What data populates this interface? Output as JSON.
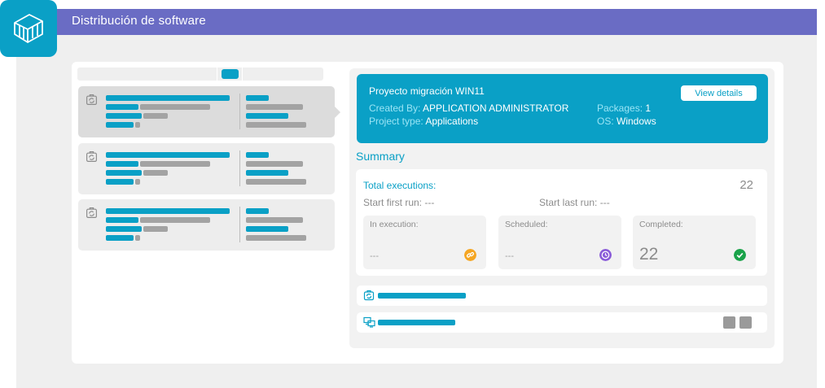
{
  "app": {
    "title": "Distribución de software"
  },
  "project": {
    "title": "Proyecto migración WIN11",
    "created_by_label": "Created By:",
    "created_by": "APPLICATION ADMINISTRATOR",
    "project_type_label": "Project type:",
    "project_type": "Applications",
    "packages_label": "Packages:",
    "packages": "1",
    "os_label": "OS:",
    "os": "Windows",
    "view_details_label": "View details"
  },
  "summary": {
    "heading": "Summary",
    "total_label": "Total executions:",
    "total_value": "22",
    "start_first_run": "Start first run: ---",
    "start_last_run": "Start last run: ---",
    "stats": [
      {
        "label": "In execution:",
        "value": "---",
        "icon": "link-icon",
        "color": "#f5a623"
      },
      {
        "label": "Scheduled:",
        "value": "---",
        "icon": "clock-icon",
        "color": "#8a5bd8"
      },
      {
        "label": "Completed:",
        "value": "22",
        "icon": "check-icon",
        "color": "#1aa34a"
      }
    ]
  },
  "colors": {
    "accent": "#0aa0c6",
    "topbar": "#6a6cc4",
    "placeholder": "#a3a3a3"
  },
  "icons": [
    "logo-icon",
    "package-icon",
    "devices-icon"
  ]
}
